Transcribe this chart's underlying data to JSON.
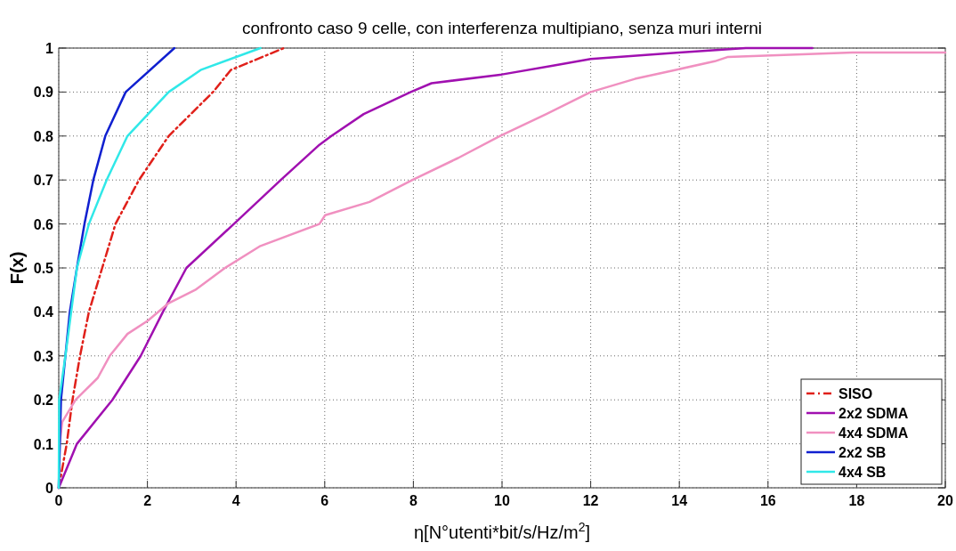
{
  "chart_data": {
    "type": "line",
    "title": "confronto caso 9 celle, con interferenza multipiano, senza muri interni",
    "xlabel": "η[N°utenti*bit/s/Hz/m$^{2}$]",
    "ylabel": "F(x)",
    "xlim": [
      0,
      20
    ],
    "ylim": [
      0,
      1
    ],
    "xticks": [
      0,
      2,
      4,
      6,
      8,
      10,
      12,
      14,
      16,
      18,
      20
    ],
    "yticks": [
      0,
      0.1,
      0.2,
      0.3,
      0.4,
      0.5,
      0.6,
      0.7,
      0.8,
      0.9,
      1
    ],
    "grid": true,
    "legend": "bottom right",
    "series": [
      {
        "name": "SISO",
        "color": "#e0201a",
        "line_style": "dashed",
        "x": [
          0,
          0.18,
          0.31,
          0.48,
          0.68,
          0.98,
          1.28,
          1.81,
          2.48,
          3.48,
          3.88,
          5.08
        ],
        "values": [
          0,
          0.1,
          0.2,
          0.3,
          0.4,
          0.5,
          0.6,
          0.7,
          0.8,
          0.9,
          0.95,
          1
        ]
      },
      {
        "name": "2x2 SDMA",
        "color": "#a010b0",
        "line_style": "solid",
        "x": [
          0,
          0.41,
          1.21,
          1.85,
          2.35,
          2.88,
          3.95,
          5.01,
          5.88,
          6.15,
          6.88,
          7.94,
          8.41,
          10,
          11.15,
          12,
          14,
          15.5,
          17
        ],
        "values": [
          0,
          0.1,
          0.2,
          0.3,
          0.4,
          0.5,
          0.6,
          0.7,
          0.78,
          0.8,
          0.85,
          0.9,
          0.92,
          0.94,
          0.96,
          0.975,
          0.99,
          1,
          1
        ]
      },
      {
        "name": "4x4 SDMA",
        "color": "#f090c0",
        "line_style": "solid",
        "x": [
          0,
          0.02,
          0.08,
          0.38,
          0.88,
          1.15,
          1.55,
          2.01,
          2.48,
          3.08,
          3.75,
          4.55,
          5.88,
          6.01,
          7.01,
          7.98,
          9.01,
          9.95,
          11,
          12,
          13,
          13.9,
          14.8,
          15.1,
          17.9,
          20
        ],
        "values": [
          0,
          0.1,
          0.15,
          0.2,
          0.25,
          0.3,
          0.35,
          0.38,
          0.42,
          0.45,
          0.5,
          0.55,
          0.6,
          0.62,
          0.65,
          0.7,
          0.75,
          0.8,
          0.85,
          0.9,
          0.93,
          0.95,
          0.97,
          0.98,
          0.99,
          0.99
        ]
      },
      {
        "name": "2x2 SB",
        "color": "#1020d0",
        "line_style": "solid",
        "x": [
          0,
          0.05,
          0.25,
          0.41,
          0.58,
          0.78,
          1.05,
          1.51,
          2.61
        ],
        "values": [
          0,
          0.2,
          0.4,
          0.5,
          0.6,
          0.7,
          0.8,
          0.9,
          1
        ]
      },
      {
        "name": "4x4 SB",
        "color": "#30e8e8",
        "line_style": "solid",
        "x": [
          0,
          0.01,
          0.15,
          0.41,
          0.68,
          1.08,
          1.55,
          2.48,
          3.2,
          4.55
        ],
        "values": [
          0,
          0.2,
          0.3,
          0.5,
          0.6,
          0.7,
          0.8,
          0.9,
          0.95,
          1
        ]
      }
    ]
  }
}
